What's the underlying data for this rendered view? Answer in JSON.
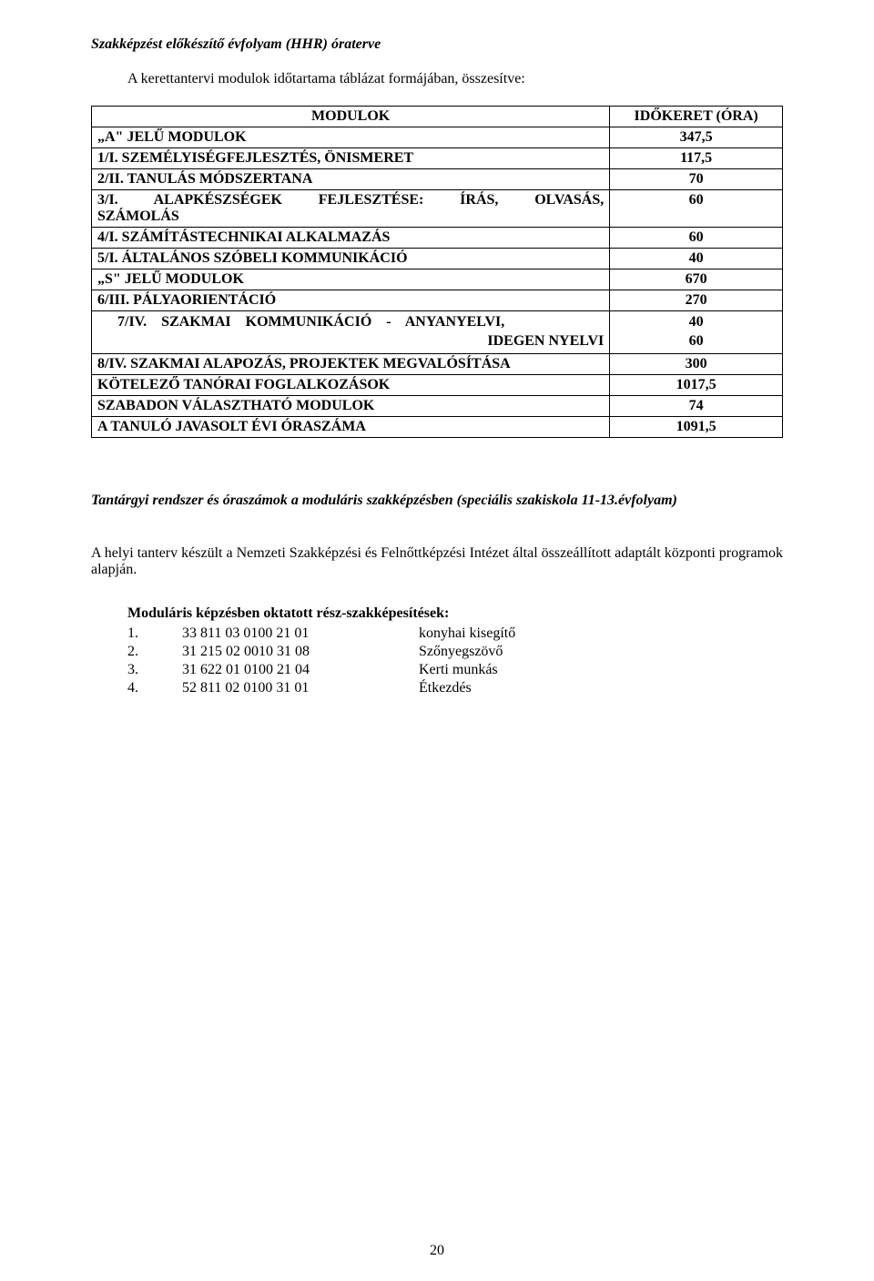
{
  "page_title": "Szakképzést előkészítő évfolyam (HHR) óraterve",
  "subtitle": "A kerettantervi modulok időtartama táblázat formájában, összesítve:",
  "table": {
    "header": {
      "col1": "MODULOK",
      "col2": "IDŐKERET (ÓRA)"
    },
    "rows": [
      {
        "name": "„A\" JELŰ MODULOK",
        "value": "347,5",
        "indent": false
      },
      {
        "name": "1/I. SZEMÉLYISÉGFEJLESZTÉS, ÖNISMERET",
        "value": "117,5",
        "indent": false
      },
      {
        "name": "2/II. TANULÁS MÓDSZERTANA",
        "value": "70",
        "indent": false
      },
      {
        "name": "3/I. ALAPKÉSZSÉGEK FEJLESZTÉSE: ÍRÁS, OLVASÁS, SZÁMOLÁS",
        "value": "60",
        "indent": false,
        "spaced": true
      },
      {
        "name": "4/I. SZÁMÍTÁSTECHNIKAI ALKALMAZÁS",
        "value": "60",
        "indent": false
      },
      {
        "name": "5/I. ÁLTALÁNOS SZÓBELI KOMMUNIKÁCIÓ",
        "value": "40",
        "indent": false
      },
      {
        "name": "„S\" JELŰ MODULOK",
        "value": "670",
        "indent": false
      },
      {
        "name": "6/III. PÁLYAORIENTÁCIÓ",
        "value": "270",
        "indent": false
      },
      {
        "name": "7/IV. SZAKMAI KOMMUNIKÁCIÓ - ANYANYELVI, IDEGEN NYELVI",
        "value_multi": [
          "40",
          "60"
        ],
        "indent": true,
        "multi": true,
        "spaced": true
      },
      {
        "name": "8/IV. SZAKMAI ALAPOZÁS, PROJEKTEK MEGVALÓSÍTÁSA",
        "value": "300",
        "indent": false
      },
      {
        "name": "KÖTELEZŐ TANÓRAI FOGLALKOZÁSOK",
        "value": "1017,5",
        "indent": false
      },
      {
        "name": "SZABADON VÁLASZTHATÓ MODULOK",
        "value": "74",
        "indent": false
      },
      {
        "name": "A TANULÓ JAVASOLT ÉVI ÓRASZÁMA",
        "value": "1091,5",
        "indent": false
      }
    ]
  },
  "section_heading": "Tantárgyi rendszer és óraszámok a moduláris szakképzésben (speciális szakiskola 11-13.évfolyam)",
  "body_text": "A helyi tanterv készült a Nemzeti Szakképzési és Felnőttképzési Intézet által összeállított adaptált központi programok alapján.",
  "list_heading": "Moduláris képzésben oktatott rész-szakképesítések:",
  "qualifications": [
    {
      "num": "1.",
      "code": "33 811 03 0100 21 01",
      "name": "konyhai kisegítő"
    },
    {
      "num": "2.",
      "code": "31 215 02 0010 31 08",
      "name": "Szőnyegszövő"
    },
    {
      "num": "3.",
      "code": "31 622 01 0100 21 04",
      "name": "Kerti munkás"
    },
    {
      "num": "4.",
      "code": "52 811 02 0100 31 01",
      "name": "Étkezdés"
    }
  ],
  "page_number": "20"
}
